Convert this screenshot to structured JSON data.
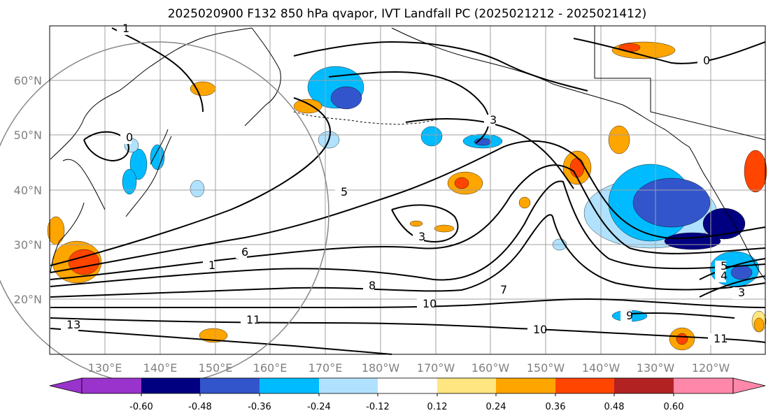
{
  "title": "2025020900 F132 850 hPa qvapor, IVT Landfall PC (2025021212 - 2025021412)",
  "latitude_labels": [
    "60°N",
    "50°N",
    "40°N",
    "30°N",
    "20°N"
  ],
  "longitude_labels": [
    "130°E",
    "140°E",
    "150°E",
    "160°E",
    "170°E",
    "180°W",
    "170°W",
    "160°W",
    "150°W",
    "140°W",
    "130°W",
    "120°W"
  ],
  "colorbar": {
    "tick_labels": [
      "-0.60",
      "-0.48",
      "-0.36",
      "-0.24",
      "-0.12",
      "0.12",
      "0.24",
      "0.36",
      "0.48",
      "0.60"
    ],
    "colors": [
      "#9933cc",
      "#000080",
      "#3355cc",
      "#00bbff",
      "#b0e2ff",
      "#ffffff",
      "#ffe680",
      "#ffa500",
      "#ff4500",
      "#b22222",
      "#ff88aa"
    ]
  },
  "contour_labels": [
    "1",
    "0",
    "3",
    "5",
    "6",
    "3",
    "8",
    "10",
    "11",
    "10",
    "11",
    "9",
    "3",
    "5",
    "4",
    "0",
    "13",
    "7",
    "1"
  ],
  "shaded_patch_colors": {
    "negative_light": "#b0e2ff",
    "negative_mid": "#00bbff",
    "negative_strong": "#3355cc",
    "negative_max": "#000080",
    "positive_light": "#ffe680",
    "positive_mid": "#ffa500",
    "positive_strong": "#ff4500",
    "positive_max": "#b22222"
  }
}
